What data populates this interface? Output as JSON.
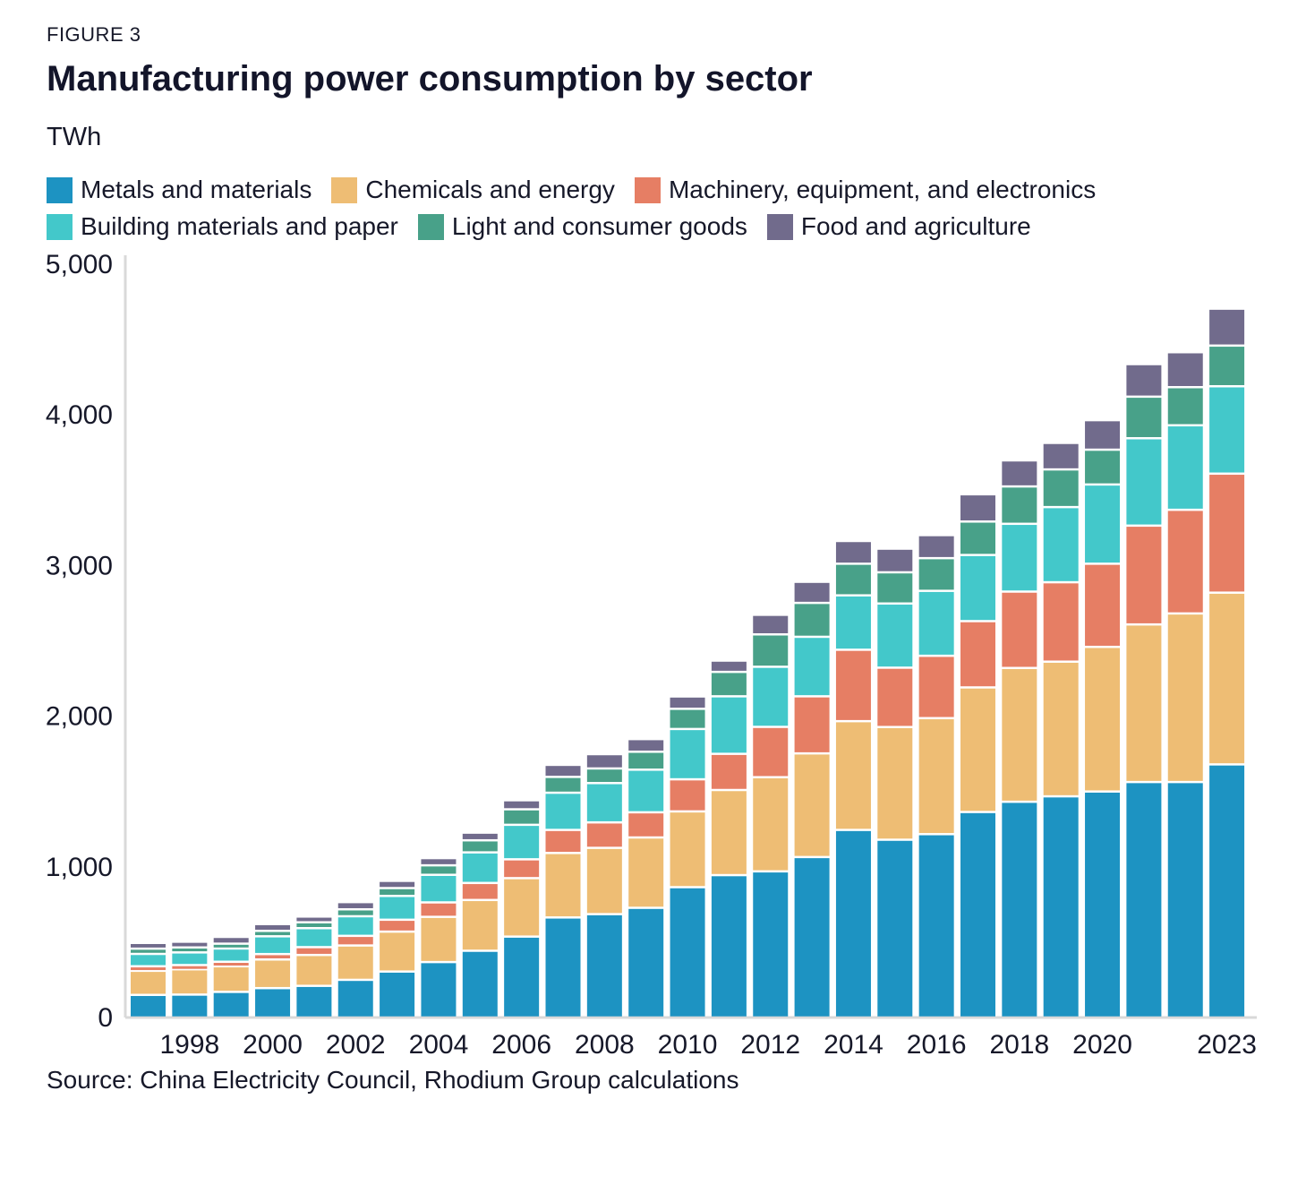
{
  "figure_label": "FIGURE 3",
  "title": "Manufacturing power consumption by sector",
  "unit_label": "TWh",
  "source": "Source: China Electricity Council, Rhodium Group calculations",
  "colors": {
    "text_dark": "#161829",
    "axis_line": "#d9d9d9",
    "background": "#ffffff"
  },
  "chart_data": {
    "type": "bar",
    "stacked": true,
    "title": "Manufacturing power consumption by sector",
    "ylabel": "TWh",
    "xlabel": "",
    "ylim": [
      0,
      5000
    ],
    "y_ticks": [
      0,
      1000,
      2000,
      3000,
      4000,
      5000
    ],
    "grid": false,
    "legend_position": "top",
    "categories": [
      1997,
      1998,
      1999,
      2000,
      2001,
      2002,
      2003,
      2004,
      2005,
      2006,
      2007,
      2008,
      2009,
      2010,
      2011,
      2012,
      2013,
      2014,
      2015,
      2016,
      2017,
      2018,
      2019,
      2020,
      2021,
      2022,
      2023
    ],
    "x_tick_labels": [
      "1998",
      "2000",
      "2002",
      "2004",
      "2006",
      "2008",
      "2010",
      "2012",
      "2014",
      "2016",
      "2018",
      "2020",
      "2023"
    ],
    "series": [
      {
        "name": "Metals and materials",
        "color": "#1d93c2",
        "values": [
          150,
          152,
          170,
          195,
          210,
          250,
          305,
          368,
          443,
          537,
          664,
          686,
          728,
          865,
          945,
          970,
          1065,
          1245,
          1180,
          1217,
          1364,
          1432,
          1468,
          1500,
          1563,
          1563,
          1680
        ]
      },
      {
        "name": "Chemicals and energy",
        "color": "#eebd74",
        "values": [
          160,
          168,
          170,
          190,
          205,
          228,
          265,
          300,
          337,
          388,
          428,
          440,
          467,
          503,
          565,
          625,
          688,
          722,
          748,
          770,
          827,
          888,
          894,
          960,
          1046,
          1119,
          1140
        ]
      },
      {
        "name": "Machinery, equipment, and electronics",
        "color": "#e67e64",
        "values": [
          30,
          28,
          30,
          36,
          52,
          64,
          79,
          96,
          113,
          125,
          153,
          169,
          167,
          213,
          240,
          334,
          379,
          474,
          394,
          414,
          440,
          507,
          527,
          552,
          656,
          688,
          790
        ]
      },
      {
        "name": "Building materials and paper",
        "color": "#43c8ca",
        "values": [
          82,
          84,
          88,
          118,
          126,
          130,
          158,
          183,
          203,
          229,
          247,
          261,
          283,
          334,
          382,
          399,
          395,
          361,
          426,
          431,
          439,
          450,
          499,
          526,
          580,
          561,
          580
        ]
      },
      {
        "name": "Light and consumer goods",
        "color": "#48a189",
        "values": [
          35,
          33,
          32,
          36,
          39,
          46,
          52,
          63,
          80,
          103,
          105,
          97,
          119,
          134,
          162,
          215,
          225,
          210,
          207,
          217,
          222,
          248,
          250,
          231,
          276,
          253,
          270
        ]
      },
      {
        "name": "Food and agriculture",
        "color": "#716b8c",
        "values": [
          38,
          38,
          45,
          45,
          38,
          48,
          48,
          48,
          51,
          60,
          80,
          95,
          84,
          82,
          75,
          130,
          140,
          151,
          157,
          153,
          181,
          173,
          176,
          196,
          216,
          232,
          245
        ]
      }
    ]
  }
}
